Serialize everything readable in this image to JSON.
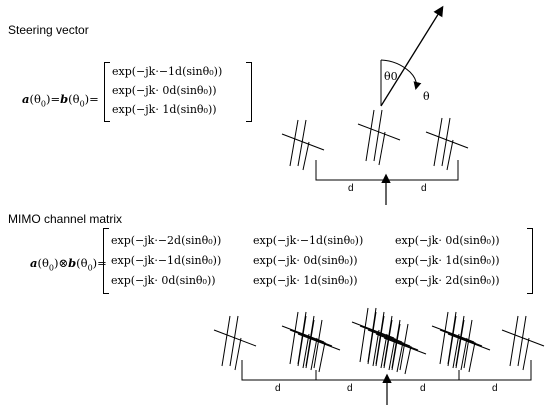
{
  "section1": {
    "title": "Steering vector",
    "lhs": [
      "a",
      "(θ",
      "0",
      ")=",
      "b",
      "(θ",
      "0",
      ")="
    ],
    "rows": [
      "exp(−jk·−1d(sinθ₀))",
      "exp(−jk· 0d(sinθ₀))",
      "exp(−jk· 1d(sinθ₀))"
    ]
  },
  "section2": {
    "title": "MIMO channel matrix",
    "lhs": [
      "a",
      "(θ",
      "0",
      ")⊗",
      "b",
      "(θ",
      "0",
      ")="
    ],
    "rows": [
      [
        "exp(−jk·−2d(sinθ₀))",
        "exp(−jk·−1d(sinθ₀))",
        "exp(−jk· 0d(sinθ₀))"
      ],
      [
        "exp(−jk·−1d(sinθ₀))",
        "exp(−jk· 0d(sinθ₀))",
        "exp(−jk· 1d(sinθ₀))"
      ],
      [
        "exp(−jk· 0d(sinθ₀))",
        "exp(−jk· 1d(sinθ₀))",
        "exp(−jk· 2d(sinθ₀))"
      ]
    ]
  },
  "diagram1": {
    "theta0_label": "θ0",
    "theta_label": "θ",
    "spacing_labels": [
      "d",
      "d"
    ]
  },
  "diagram2": {
    "spacing_labels": [
      "d",
      "d",
      "d",
      "d"
    ]
  }
}
